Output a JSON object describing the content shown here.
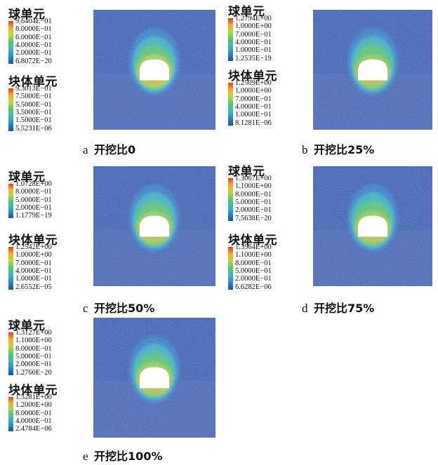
{
  "panels": [
    {
      "letter": "a",
      "title": "开挖比0",
      "legends": [
        {
          "title": "球单元",
          "ticks": [
            "9.6404E−01",
            "8.0000E−01",
            "6.0000E−01",
            "4.0000E−01",
            "2.0000E−01",
            "6.8072E−20"
          ]
        },
        {
          "title": "块体单元",
          "ticks": [
            "9.3013E−01",
            "7.5000E−01",
            "5.5000E−01",
            "3.5000E−01",
            "1.5000E−01",
            "5.5231E−06"
          ]
        }
      ],
      "zone_intensity": 0.75
    },
    {
      "letter": "b",
      "title": "开挖比25%",
      "legends": [
        {
          "title": "球单元",
          "ticks": [
            "1.2794E+00",
            "1.0000E+00",
            "7.0000E−01",
            "4.0000E−01",
            "1.0000E−01",
            "1.2535E−19"
          ]
        },
        {
          "title": "块体单元",
          "ticks": [
            "1.2509E+00",
            "1.0000E+00",
            "7.0000E−01",
            "4.0000E−01",
            "1.0000E−01",
            "8.1281E−06"
          ]
        }
      ],
      "zone_intensity": 0.55
    },
    {
      "letter": "c",
      "title": "开挖比50%",
      "legends": [
        {
          "title": "球单元",
          "ticks": [
            "1.0728E+00",
            "8.0000E−01",
            "5.0000E−01",
            "2.0000E−01",
            "1.1779E−19"
          ]
        },
        {
          "title": "块体单元",
          "ticks": [
            "1.2542E+00",
            "1.0000E+00",
            "7.0000E−01",
            "4.0000E−01",
            "1.0000E−01",
            "2.6552E−05"
          ]
        }
      ],
      "zone_intensity": 0.6
    },
    {
      "letter": "d",
      "title": "开挖比75%",
      "legends": [
        {
          "title": "球单元",
          "ticks": [
            "1.3067E+00",
            "1.1000E+00",
            "8.0000E−01",
            "5.0000E−01",
            "2.0000E−01",
            "7.5638E−20"
          ]
        },
        {
          "title": "块体单元",
          "ticks": [
            "1.3964E+00",
            "1.1000E+00",
            "8.0000E−01",
            "5.0000E−01",
            "2.0000E−01",
            "6.6282E−06"
          ]
        }
      ],
      "zone_intensity": 0.6
    },
    {
      "letter": "e",
      "title": "开挖比100%",
      "legends": [
        {
          "title": "球单元",
          "ticks": [
            "1.3127E+00",
            "1.1000E+00",
            "8.0000E−01",
            "5.0000E−01",
            "2.0000E−01",
            "1.2766E−20"
          ]
        },
        {
          "title": "块体单元",
          "ticks": [
            "1.5281E+00",
            "1.2000E+00",
            "8.0000E−01",
            "4.0000E−01",
            "2.4784E−06"
          ]
        }
      ],
      "zone_intensity": 0.65
    }
  ],
  "colors": {
    "background_blue": "#3f5fae",
    "lower_blue": "#5069b4",
    "ramp": [
      "#1f4fa8",
      "#2f86c6",
      "#3fb6c0",
      "#58c46a",
      "#b9d641",
      "#f2b12c",
      "#e8392a"
    ]
  }
}
